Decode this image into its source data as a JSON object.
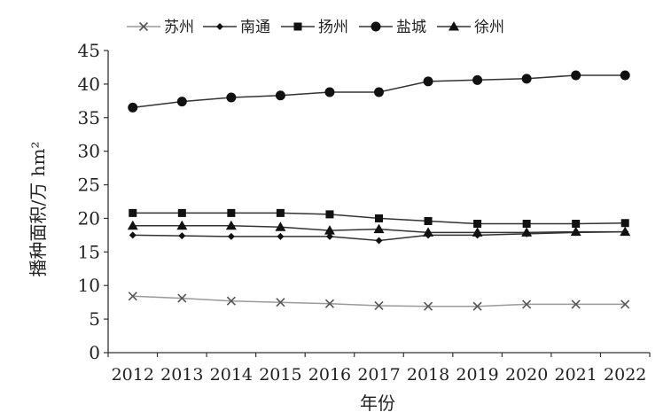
{
  "chart_data": {
    "type": "line",
    "xlabel": "年份",
    "ylabel": "播种面积/万 hm²",
    "ylim": [
      0,
      45
    ],
    "yticks": [
      0,
      5,
      10,
      15,
      20,
      25,
      30,
      35,
      40,
      45
    ],
    "categories": [
      "2012",
      "2013",
      "2014",
      "2015",
      "2016",
      "2017",
      "2018",
      "2019",
      "2020",
      "2021",
      "2022"
    ],
    "grid": false,
    "legend_position": "top",
    "series": [
      {
        "name": "苏州",
        "marker": "x",
        "color": "#9a9a9a",
        "values": [
          8.4,
          8.1,
          7.7,
          7.5,
          7.3,
          7.0,
          6.9,
          6.9,
          7.2,
          7.2,
          7.2
        ]
      },
      {
        "name": "南通",
        "marker": "diamond",
        "color": "#333333",
        "values": [
          17.5,
          17.4,
          17.3,
          17.3,
          17.3,
          16.7,
          17.5,
          17.5,
          17.7,
          17.9,
          18.0
        ]
      },
      {
        "name": "扬州",
        "marker": "square",
        "color": "#333333",
        "values": [
          20.8,
          20.8,
          20.8,
          20.8,
          20.6,
          20.0,
          19.6,
          19.2,
          19.2,
          19.2,
          19.3
        ]
      },
      {
        "name": "盐城",
        "marker": "circle",
        "color": "#333333",
        "values": [
          36.5,
          37.4,
          38.0,
          38.3,
          38.8,
          38.8,
          40.4,
          40.6,
          40.8,
          41.3,
          41.3
        ]
      },
      {
        "name": "徐州",
        "marker": "triangle",
        "color": "#333333",
        "values": [
          18.9,
          18.9,
          18.9,
          18.7,
          18.2,
          18.4,
          17.9,
          17.9,
          17.9,
          18.0,
          18.0
        ]
      }
    ]
  }
}
